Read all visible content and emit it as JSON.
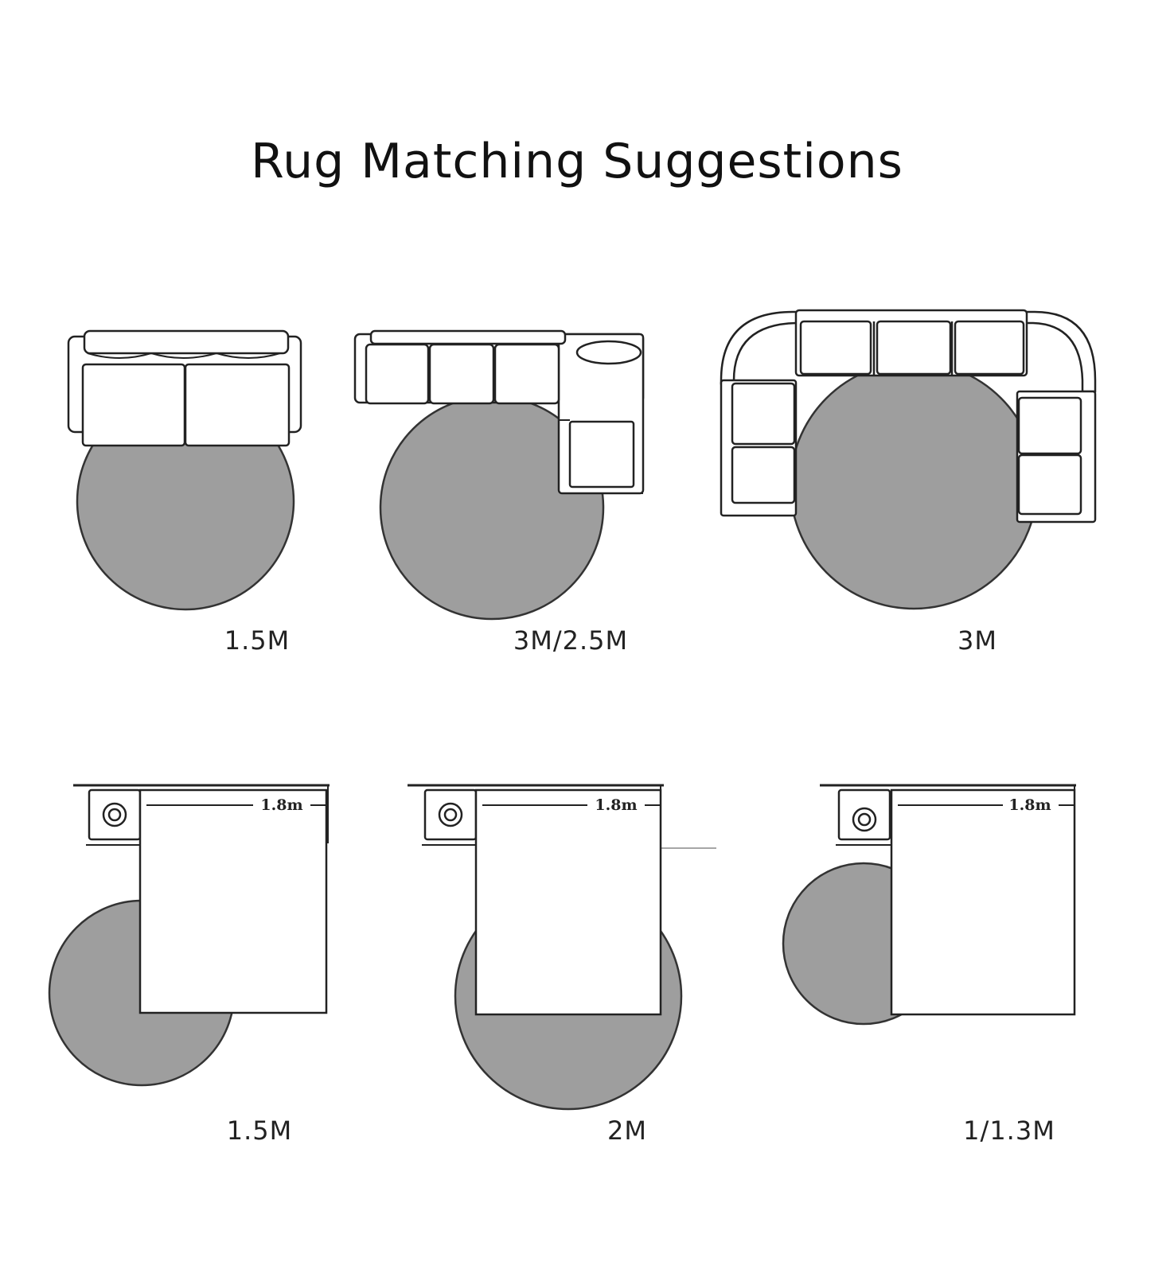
{
  "title": "Rug Matching Suggestions",
  "colors": {
    "rug": "#9e9e9e",
    "outline": "#222222",
    "furniture_fill": "#ffffff"
  },
  "layouts": [
    {
      "id": "loveseat",
      "furniture": "two-seat sofa",
      "rug_shape": "round",
      "rug_size": "1.5M"
    },
    {
      "id": "l-sectional",
      "furniture": "L-shaped sofa",
      "rug_shape": "round",
      "rug_size": "3M/2.5M"
    },
    {
      "id": "u-sectional",
      "furniture": "U-shaped sofa",
      "rug_shape": "round",
      "rug_size": "3M"
    },
    {
      "id": "bed-corner",
      "furniture": "bed",
      "bed_width": "1.8m",
      "rug_shape": "round",
      "rug_size": "1.5M"
    },
    {
      "id": "bed-center",
      "furniture": "bed",
      "bed_width": "1.8m",
      "rug_shape": "round",
      "rug_size": "2M"
    },
    {
      "id": "bed-side",
      "furniture": "bed",
      "bed_width": "1.8m",
      "rug_shape": "round",
      "rug_size": "1/1.3M"
    }
  ]
}
